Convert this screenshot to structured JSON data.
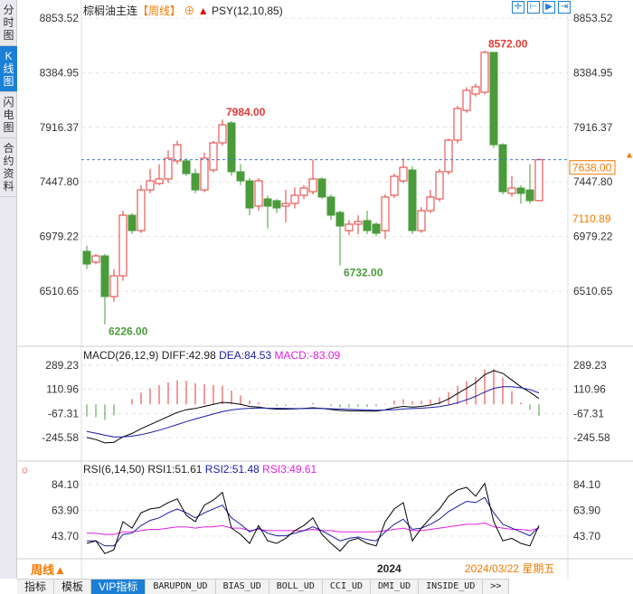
{
  "sidebar": {
    "tabs": [
      {
        "label": "分时图"
      },
      {
        "label": "K线图",
        "active": true
      },
      {
        "label": "闪电图"
      },
      {
        "label": "合约资料"
      }
    ]
  },
  "header": {
    "symbol": "棕榈油主连",
    "period": "【周线】",
    "indicator": "PSY(12,10,85)",
    "add_icon": "circle-plus-icon",
    "arrow_icon": "red-up-arrow-icon"
  },
  "toolbar": {
    "icons": [
      "crosshair-icon",
      "zoom-range-icon",
      "play-range-icon",
      "move-right-icon"
    ]
  },
  "colors": {
    "up": "#e53935",
    "down": "#4a9b3a",
    "dif": "#000000",
    "dea": "#1a1aa8",
    "macd": "#e020e0",
    "rsi1": "#000000",
    "rsi2": "#1a1aa8",
    "rsi3": "#e020e0",
    "accent": "#f47a00"
  },
  "chart_data": [
    {
      "type": "candlestick",
      "name": "price",
      "yticks": [
        "8853.52",
        "8384.95",
        "7916.37",
        "7447.80",
        "6979.22",
        "6510.65"
      ],
      "ylim": [
        6510.65,
        8853.52
      ],
      "last_price": "7638.00",
      "level_label": "7110.89",
      "annotations": [
        {
          "label": "8572.00",
          "index": 44
        },
        {
          "label": "7984.00",
          "index": 15
        },
        {
          "label": "6732.00",
          "index": 28
        },
        {
          "label": "6226.00",
          "index": 2
        }
      ],
      "ohlc_order": [
        "open",
        "close",
        "high",
        "low"
      ],
      "candles": [
        [
          6852,
          6743,
          6900,
          6700
        ],
        [
          6759,
          6813,
          6830,
          6740
        ],
        [
          6813,
          6464,
          6830,
          6226
        ],
        [
          6464,
          6642,
          6700,
          6420
        ],
        [
          6642,
          7162,
          7200,
          6600
        ],
        [
          7162,
          7030,
          7180,
          7000
        ],
        [
          7030,
          7379,
          7420,
          7010
        ],
        [
          7379,
          7457,
          7560,
          7350
        ],
        [
          7434,
          7473,
          7600,
          7420
        ],
        [
          7473,
          7651,
          7720,
          7440
        ],
        [
          7628,
          7767,
          7800,
          7600
        ],
        [
          7628,
          7519,
          7650,
          7500
        ],
        [
          7519,
          7379,
          7560,
          7350
        ],
        [
          7379,
          7651,
          7700,
          7360
        ],
        [
          7550,
          7783,
          7800,
          7530
        ],
        [
          7783,
          7938,
          7984,
          7760
        ],
        [
          7954,
          7535,
          7970,
          7500
        ],
        [
          7535,
          7457,
          7600,
          7420
        ],
        [
          7457,
          7224,
          7480,
          7160
        ],
        [
          7240,
          7457,
          7480,
          7200
        ],
        [
          7302,
          7240,
          7330,
          7050
        ],
        [
          7287,
          7224,
          7300,
          7180
        ],
        [
          7240,
          7263,
          7380,
          7100
        ],
        [
          7263,
          7333,
          7400,
          7220
        ],
        [
          7333,
          7395,
          7420,
          7300
        ],
        [
          7364,
          7473,
          7640,
          7340
        ],
        [
          7473,
          7318,
          7490,
          7300
        ],
        [
          7318,
          7162,
          7340,
          7120
        ],
        [
          7186,
          7069,
          7200,
          6732
        ],
        [
          7030,
          7085,
          7120,
          6990
        ],
        [
          7085,
          7108,
          7160,
          7000
        ],
        [
          7116,
          7030,
          7200,
          7000
        ],
        [
          7085,
          7007,
          7100,
          6980
        ],
        [
          7030,
          7318,
          7340,
          6960
        ],
        [
          7333,
          7496,
          7520,
          7310
        ],
        [
          7457,
          7573,
          7650,
          7440
        ],
        [
          7550,
          7030,
          7580,
          7000
        ],
        [
          7030,
          7201,
          7230,
          7010
        ],
        [
          7201,
          7318,
          7380,
          7180
        ],
        [
          7302,
          7535,
          7560,
          7280
        ],
        [
          7535,
          7806,
          7820,
          7510
        ],
        [
          7806,
          8078,
          8100,
          7780
        ],
        [
          8062,
          8233,
          8260,
          8040
        ],
        [
          8202,
          8264,
          8290,
          8180
        ],
        [
          8217,
          8559,
          8572,
          8200
        ],
        [
          8559,
          7767,
          8559,
          7740
        ],
        [
          7767,
          7364,
          7780,
          7340
        ],
        [
          7349,
          7395,
          7500,
          7320
        ],
        [
          7395,
          7349,
          7420,
          7260
        ],
        [
          7379,
          7287,
          7600,
          7260
        ],
        [
          7287,
          7638,
          7650,
          7280
        ]
      ]
    },
    {
      "type": "line",
      "name": "MACD(26,12,9)",
      "legend": {
        "title": "MACD(26,12,9)",
        "dif": "DIFF:42.98",
        "dea": "DEA:84.53",
        "macd": "MACD:-83.09"
      },
      "yticks": [
        "289.23",
        "110.96",
        "-67.31",
        "-245.58"
      ],
      "ylim": [
        -245.58,
        289.23
      ],
      "dif": [
        -245,
        -260,
        -285,
        -280,
        -240,
        -215,
        -180,
        -150,
        -120,
        -90,
        -60,
        -40,
        -30,
        -15,
        0,
        15,
        10,
        0,
        -15,
        -20,
        -30,
        -35,
        -35,
        -33,
        -30,
        -25,
        -30,
        -38,
        -45,
        -48,
        -48,
        -50,
        -50,
        -40,
        -25,
        -15,
        -20,
        -15,
        -5,
        10,
        40,
        80,
        120,
        160,
        220,
        250,
        230,
        180,
        130,
        90,
        43
      ],
      "dea": [
        -200,
        -213,
        -228,
        -240,
        -240,
        -235,
        -224,
        -209,
        -191,
        -171,
        -149,
        -127,
        -108,
        -89,
        -71,
        -54,
        -41,
        -33,
        -29,
        -27,
        -28,
        -29,
        -30,
        -31,
        -31,
        -30,
        -30,
        -32,
        -34,
        -37,
        -39,
        -41,
        -43,
        -42,
        -39,
        -34,
        -31,
        -28,
        -23,
        -16,
        -5,
        12,
        34,
        59,
        91,
        119,
        131,
        131,
        123,
        110,
        85
      ]
    },
    {
      "type": "line",
      "name": "RSI(6,14,50)",
      "legend": {
        "title": "RSI(6,14,50)",
        "rsi1": "RSI1:51.61",
        "rsi2": "RSI2:51.48",
        "rsi3": "RSI3:49.61"
      },
      "yticks": [
        "84.10",
        "63.90",
        "43.70"
      ],
      "ylim": [
        43.7,
        84.1
      ],
      "rsi1": [
        38,
        40,
        30,
        33,
        55,
        50,
        62,
        65,
        66,
        70,
        73,
        60,
        55,
        68,
        72,
        78,
        50,
        45,
        38,
        52,
        40,
        38,
        42,
        48,
        52,
        58,
        45,
        38,
        32,
        40,
        42,
        38,
        36,
        55,
        65,
        70,
        40,
        50,
        58,
        65,
        75,
        80,
        82,
        75,
        85,
        55,
        40,
        42,
        38,
        36,
        52
      ],
      "rsi2": [
        40,
        40,
        36,
        36,
        45,
        46,
        52,
        56,
        58,
        62,
        65,
        62,
        58,
        62,
        65,
        68,
        58,
        53,
        47,
        50,
        46,
        44,
        44,
        46,
        48,
        51,
        48,
        44,
        40,
        42,
        43,
        41,
        40,
        47,
        53,
        57,
        49,
        50,
        53,
        57,
        63,
        67,
        71,
        70,
        74,
        62,
        53,
        50,
        47,
        44,
        51
      ],
      "rsi3": [
        46,
        46,
        45,
        45,
        47,
        47,
        48,
        49,
        49,
        50,
        51,
        51,
        50,
        51,
        51,
        52,
        50,
        50,
        48,
        49,
        48,
        48,
        48,
        48,
        48,
        49,
        48,
        48,
        47,
        47,
        47,
        47,
        47,
        48,
        49,
        50,
        48,
        48,
        49,
        50,
        51,
        52,
        53,
        53,
        54,
        51,
        50,
        49,
        49,
        48,
        50
      ]
    }
  ],
  "xaxis": {
    "period_label": "周线▲",
    "year_label": "2024",
    "cursor_date": "2024/03/22 星期五"
  },
  "bottom_tabs": [
    "指标",
    "模板",
    "VIP指标",
    "BARUPDN_UD",
    "BIAS_UD",
    "BOLL_UD",
    "CCI_UD",
    "DMI_UD",
    "INSIDE_UD",
    ">>"
  ]
}
